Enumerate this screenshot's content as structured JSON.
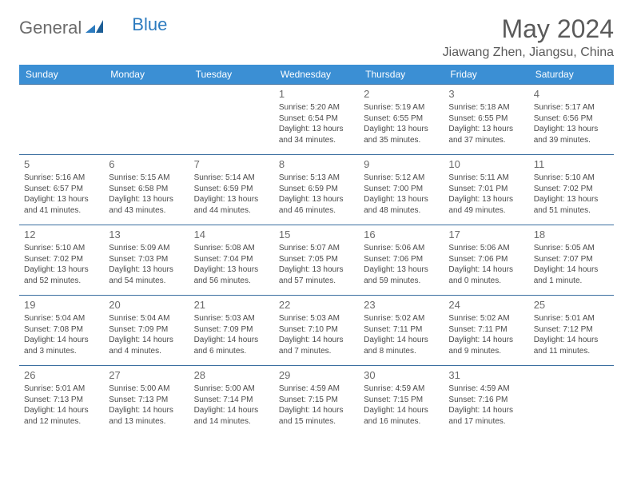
{
  "logo": {
    "general": "General",
    "blue": "Blue"
  },
  "header": {
    "month_title": "May 2024",
    "location": "Jiawang Zhen, Jiangsu, China"
  },
  "colors": {
    "header_bg": "#3b8fd4",
    "header_text": "#ffffff",
    "row_border": "#3b6fa0",
    "logo_gray": "#6b6b6b",
    "logo_blue": "#2c7bbf"
  },
  "weekdays": [
    "Sunday",
    "Monday",
    "Tuesday",
    "Wednesday",
    "Thursday",
    "Friday",
    "Saturday"
  ],
  "weeks": [
    [
      null,
      null,
      null,
      {
        "day": "1",
        "sunrise": "5:20 AM",
        "sunset": "6:54 PM",
        "daylight": "13 hours and 34 minutes."
      },
      {
        "day": "2",
        "sunrise": "5:19 AM",
        "sunset": "6:55 PM",
        "daylight": "13 hours and 35 minutes."
      },
      {
        "day": "3",
        "sunrise": "5:18 AM",
        "sunset": "6:55 PM",
        "daylight": "13 hours and 37 minutes."
      },
      {
        "day": "4",
        "sunrise": "5:17 AM",
        "sunset": "6:56 PM",
        "daylight": "13 hours and 39 minutes."
      }
    ],
    [
      {
        "day": "5",
        "sunrise": "5:16 AM",
        "sunset": "6:57 PM",
        "daylight": "13 hours and 41 minutes."
      },
      {
        "day": "6",
        "sunrise": "5:15 AM",
        "sunset": "6:58 PM",
        "daylight": "13 hours and 43 minutes."
      },
      {
        "day": "7",
        "sunrise": "5:14 AM",
        "sunset": "6:59 PM",
        "daylight": "13 hours and 44 minutes."
      },
      {
        "day": "8",
        "sunrise": "5:13 AM",
        "sunset": "6:59 PM",
        "daylight": "13 hours and 46 minutes."
      },
      {
        "day": "9",
        "sunrise": "5:12 AM",
        "sunset": "7:00 PM",
        "daylight": "13 hours and 48 minutes."
      },
      {
        "day": "10",
        "sunrise": "5:11 AM",
        "sunset": "7:01 PM",
        "daylight": "13 hours and 49 minutes."
      },
      {
        "day": "11",
        "sunrise": "5:10 AM",
        "sunset": "7:02 PM",
        "daylight": "13 hours and 51 minutes."
      }
    ],
    [
      {
        "day": "12",
        "sunrise": "5:10 AM",
        "sunset": "7:02 PM",
        "daylight": "13 hours and 52 minutes."
      },
      {
        "day": "13",
        "sunrise": "5:09 AM",
        "sunset": "7:03 PM",
        "daylight": "13 hours and 54 minutes."
      },
      {
        "day": "14",
        "sunrise": "5:08 AM",
        "sunset": "7:04 PM",
        "daylight": "13 hours and 56 minutes."
      },
      {
        "day": "15",
        "sunrise": "5:07 AM",
        "sunset": "7:05 PM",
        "daylight": "13 hours and 57 minutes."
      },
      {
        "day": "16",
        "sunrise": "5:06 AM",
        "sunset": "7:06 PM",
        "daylight": "13 hours and 59 minutes."
      },
      {
        "day": "17",
        "sunrise": "5:06 AM",
        "sunset": "7:06 PM",
        "daylight": "14 hours and 0 minutes."
      },
      {
        "day": "18",
        "sunrise": "5:05 AM",
        "sunset": "7:07 PM",
        "daylight": "14 hours and 1 minute."
      }
    ],
    [
      {
        "day": "19",
        "sunrise": "5:04 AM",
        "sunset": "7:08 PM",
        "daylight": "14 hours and 3 minutes."
      },
      {
        "day": "20",
        "sunrise": "5:04 AM",
        "sunset": "7:09 PM",
        "daylight": "14 hours and 4 minutes."
      },
      {
        "day": "21",
        "sunrise": "5:03 AM",
        "sunset": "7:09 PM",
        "daylight": "14 hours and 6 minutes."
      },
      {
        "day": "22",
        "sunrise": "5:03 AM",
        "sunset": "7:10 PM",
        "daylight": "14 hours and 7 minutes."
      },
      {
        "day": "23",
        "sunrise": "5:02 AM",
        "sunset": "7:11 PM",
        "daylight": "14 hours and 8 minutes."
      },
      {
        "day": "24",
        "sunrise": "5:02 AM",
        "sunset": "7:11 PM",
        "daylight": "14 hours and 9 minutes."
      },
      {
        "day": "25",
        "sunrise": "5:01 AM",
        "sunset": "7:12 PM",
        "daylight": "14 hours and 11 minutes."
      }
    ],
    [
      {
        "day": "26",
        "sunrise": "5:01 AM",
        "sunset": "7:13 PM",
        "daylight": "14 hours and 12 minutes."
      },
      {
        "day": "27",
        "sunrise": "5:00 AM",
        "sunset": "7:13 PM",
        "daylight": "14 hours and 13 minutes."
      },
      {
        "day": "28",
        "sunrise": "5:00 AM",
        "sunset": "7:14 PM",
        "daylight": "14 hours and 14 minutes."
      },
      {
        "day": "29",
        "sunrise": "4:59 AM",
        "sunset": "7:15 PM",
        "daylight": "14 hours and 15 minutes."
      },
      {
        "day": "30",
        "sunrise": "4:59 AM",
        "sunset": "7:15 PM",
        "daylight": "14 hours and 16 minutes."
      },
      {
        "day": "31",
        "sunrise": "4:59 AM",
        "sunset": "7:16 PM",
        "daylight": "14 hours and 17 minutes."
      },
      null
    ]
  ],
  "labels": {
    "sunrise": "Sunrise:",
    "sunset": "Sunset:",
    "daylight": "Daylight:"
  }
}
